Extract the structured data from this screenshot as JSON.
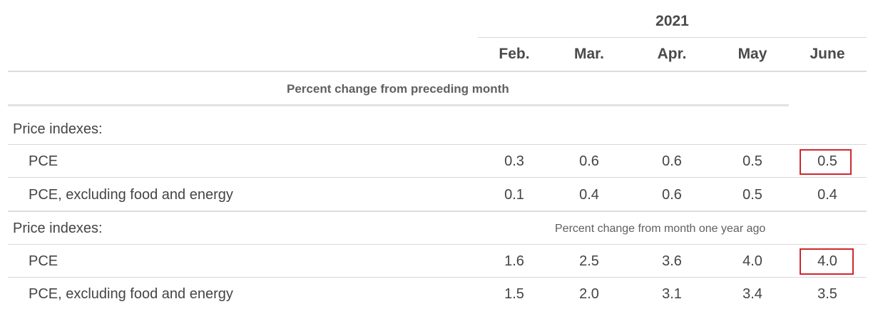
{
  "header": {
    "year": "2021",
    "months": [
      "Feb.",
      "Mar.",
      "Apr.",
      "May",
      "June"
    ]
  },
  "sections": [
    {
      "note": "Percent change from preceding month",
      "group_label": "Price indexes:",
      "rows": [
        {
          "label": "PCE",
          "values": [
            "0.3",
            "0.6",
            "0.6",
            "0.5",
            "0.5"
          ]
        },
        {
          "label": "PCE, excluding food and energy",
          "values": [
            "0.1",
            "0.4",
            "0.6",
            "0.5",
            "0.4"
          ]
        }
      ]
    },
    {
      "note": "Percent change from month one year ago",
      "group_label": "Price indexes:",
      "rows": [
        {
          "label": "PCE",
          "values": [
            "1.6",
            "2.5",
            "3.6",
            "4.0",
            "4.0"
          ]
        },
        {
          "label": "PCE, excluding food and energy",
          "values": [
            "1.5",
            "2.0",
            "3.1",
            "3.4",
            "3.5"
          ]
        }
      ]
    }
  ],
  "highlight_color": "#d0282e"
}
